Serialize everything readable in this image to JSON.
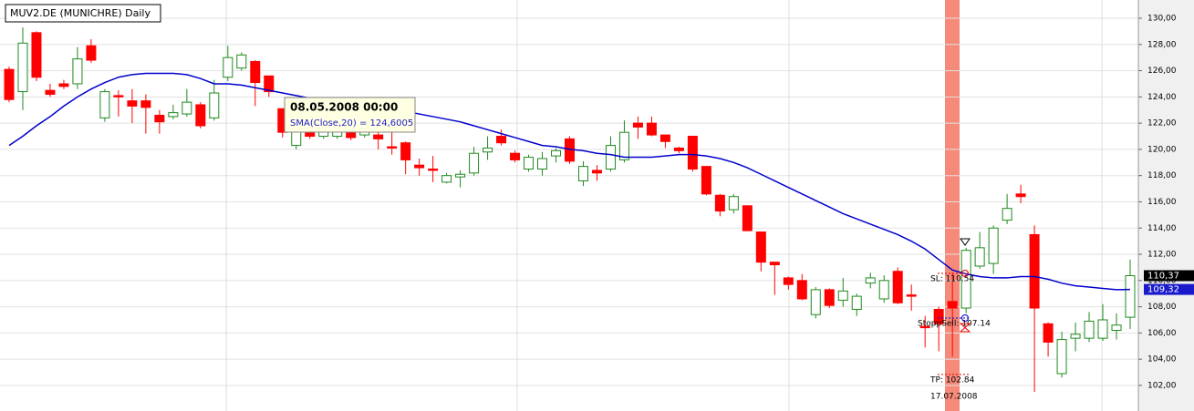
{
  "chart_data": {
    "type": "candlestick",
    "title": "MUV2.DE (MUNICHRE) Daily",
    "up_color": "#1f8a1f",
    "down_color": "#ff0000",
    "open": [
      126.1,
      124.4,
      128.9,
      124.5,
      125.0,
      125.0,
      127.9,
      122.4,
      124.1,
      123.7,
      123.7,
      122.6,
      122.5,
      122.7,
      123.4,
      122.4,
      125.5,
      126.2,
      126.7,
      125.6,
      123.1,
      120.3,
      121.5,
      121.0,
      121.0,
      121.3,
      121.1,
      121.1,
      120.2,
      120.5,
      118.8,
      118.5,
      117.5,
      117.9,
      118.2,
      119.8,
      121.0,
      119.7,
      118.5,
      118.5,
      119.5,
      120.8,
      117.6,
      118.4,
      118.5,
      119.2,
      122.0,
      122.0,
      121.1,
      120.1,
      121.0,
      118.7,
      116.5,
      115.4,
      115.7,
      113.7,
      111.4,
      110.2,
      110.0,
      107.4,
      109.3,
      108.5,
      107.8,
      109.8,
      108.6,
      110.7,
      108.9,
      106.5,
      107.8,
      108.4,
      107.9,
      111.1,
      111.3,
      114.6,
      116.6,
      113.5,
      106.7,
      102.9,
      105.6,
      105.6,
      105.6,
      106.2,
      107.2
    ],
    "high": [
      126.3,
      129.3,
      129.0,
      125.0,
      125.3,
      127.8,
      128.4,
      124.6,
      124.5,
      124.6,
      124.2,
      123.0,
      123.4,
      124.6,
      123.6,
      125.3,
      127.9,
      127.4,
      126.8,
      125.6,
      123.1,
      121.6,
      122.0,
      121.8,
      122.0,
      121.5,
      121.8,
      121.5,
      121.3,
      120.6,
      119.3,
      119.5,
      118.2,
      118.4,
      120.2,
      121.0,
      121.5,
      119.9,
      119.6,
      119.8,
      120.1,
      121.0,
      119.1,
      118.8,
      121.0,
      122.2,
      122.5,
      122.5,
      121.1,
      120.2,
      121.0,
      118.7,
      116.6,
      116.6,
      115.7,
      113.7,
      111.4,
      110.3,
      110.5,
      109.5,
      109.4,
      110.2,
      109.0,
      110.6,
      110.4,
      111.0,
      109.7,
      107.3,
      108.0,
      110.6,
      112.5,
      113.7,
      114.2,
      116.6,
      117.3,
      114.2,
      106.8,
      106.1,
      106.8,
      107.6,
      108.2,
      107.5,
      111.6
    ],
    "low": [
      123.6,
      123.0,
      125.2,
      124.0,
      124.6,
      124.6,
      126.6,
      122.1,
      122.5,
      122.0,
      121.2,
      121.2,
      122.3,
      122.5,
      121.6,
      122.2,
      125.2,
      126.0,
      123.3,
      124.0,
      120.9,
      120.0,
      120.8,
      120.8,
      120.8,
      120.7,
      120.9,
      120.0,
      119.6,
      118.1,
      118.0,
      117.5,
      117.4,
      117.1,
      118.0,
      119.2,
      120.3,
      119.0,
      118.3,
      118.0,
      119.0,
      118.9,
      117.2,
      117.6,
      118.3,
      119.0,
      120.8,
      121.0,
      120.1,
      119.7,
      118.3,
      116.5,
      114.9,
      115.1,
      113.8,
      110.7,
      108.9,
      109.3,
      108.5,
      107.1,
      107.9,
      108.0,
      107.3,
      109.4,
      108.3,
      108.2,
      107.7,
      104.9,
      104.6,
      104.2,
      107.5,
      110.9,
      110.5,
      114.3,
      115.9,
      101.5,
      104.2,
      102.6,
      104.6,
      105.3,
      105.4,
      105.5,
      106.3
    ],
    "close": [
      123.8,
      128.1,
      125.5,
      124.2,
      124.8,
      126.9,
      126.8,
      124.4,
      124.0,
      123.3,
      123.2,
      122.1,
      122.8,
      123.6,
      121.8,
      124.3,
      127.0,
      127.2,
      125.1,
      124.4,
      121.3,
      121.4,
      121.0,
      121.6,
      121.8,
      120.9,
      121.5,
      120.8,
      120.1,
      119.2,
      118.6,
      118.4,
      118.0,
      118.1,
      119.7,
      120.1,
      120.5,
      119.2,
      119.4,
      119.3,
      119.9,
      119.1,
      118.7,
      118.2,
      120.3,
      121.3,
      121.7,
      121.1,
      120.6,
      119.9,
      118.5,
      116.6,
      115.3,
      116.4,
      113.8,
      111.4,
      111.2,
      109.7,
      108.6,
      109.3,
      108.1,
      109.2,
      108.8,
      110.2,
      110.0,
      108.3,
      108.8,
      106.4,
      106.7,
      107.9,
      112.3,
      112.5,
      114.0,
      115.5,
      116.4,
      107.9,
      105.3,
      105.5,
      105.9,
      106.9,
      107.0,
      106.6,
      110.37
    ],
    "sma": {
      "color": "#0000cc",
      "values": [
        120.3,
        121.0,
        121.8,
        122.5,
        123.3,
        124.0,
        124.6,
        125.1,
        125.5,
        125.7,
        125.8,
        125.8,
        125.8,
        125.7,
        125.4,
        125.0,
        125.0,
        124.9,
        124.7,
        124.5,
        124.3,
        124.1,
        123.9,
        123.8,
        123.7,
        123.6,
        123.5,
        123.3,
        123.1,
        122.9,
        122.7,
        122.5,
        122.3,
        122.1,
        121.8,
        121.5,
        121.2,
        120.9,
        120.6,
        120.3,
        120.2,
        120.0,
        119.9,
        119.7,
        119.6,
        119.4,
        119.4,
        119.4,
        119.5,
        119.6,
        119.6,
        119.5,
        119.3,
        119.0,
        118.6,
        118.1,
        117.6,
        117.1,
        116.6,
        116.1,
        115.6,
        115.1,
        114.7,
        114.3,
        113.9,
        113.5,
        113.0,
        112.4,
        111.6,
        110.8,
        110.5,
        110.3,
        110.2,
        110.2,
        110.3,
        110.3,
        110.1,
        109.8,
        109.6,
        109.5,
        109.4,
        109.3,
        109.32
      ]
    },
    "ylim": [
      100.05,
      131.39
    ],
    "yticks": [
      {
        "value": 102,
        "label": "102,00"
      },
      {
        "value": 104,
        "label": "104,00"
      },
      {
        "value": 106,
        "label": "106,00"
      },
      {
        "value": 108,
        "label": "108,00"
      },
      {
        "value": 110,
        "label": "110,00"
      },
      {
        "value": 112,
        "label": "112,00"
      },
      {
        "value": 114,
        "label": "114,00"
      },
      {
        "value": 116,
        "label": "116,00"
      },
      {
        "value": 118,
        "label": "118,00"
      },
      {
        "value": 120,
        "label": "120,00"
      },
      {
        "value": 122,
        "label": "122,00"
      },
      {
        "value": 124,
        "label": "124,00"
      },
      {
        "value": 126,
        "label": "126,00"
      },
      {
        "value": 128,
        "label": "128,00"
      },
      {
        "value": 130,
        "label": "130,00"
      }
    ],
    "grid": true,
    "price_labels": [
      {
        "value": 110.37,
        "label": "110,37",
        "color": "#000000"
      },
      {
        "value": 109.32,
        "label": "109,32",
        "color": "#1a1acc"
      }
    ],
    "levels": [
      {
        "label": "SL: 110.54",
        "value": 110.54,
        "color": "#e00000"
      },
      {
        "label": "StoppSell: 107.14",
        "value": 107.14,
        "color": "#0000cc"
      },
      {
        "label": "TP: 102.84",
        "value": 102.84,
        "color": "#e00000"
      }
    ],
    "highlight_label": "17.07.2008",
    "tooltip": {
      "date": "08.05.2008 00:00",
      "text": "SMA(Close,20) = 124,6005"
    }
  }
}
